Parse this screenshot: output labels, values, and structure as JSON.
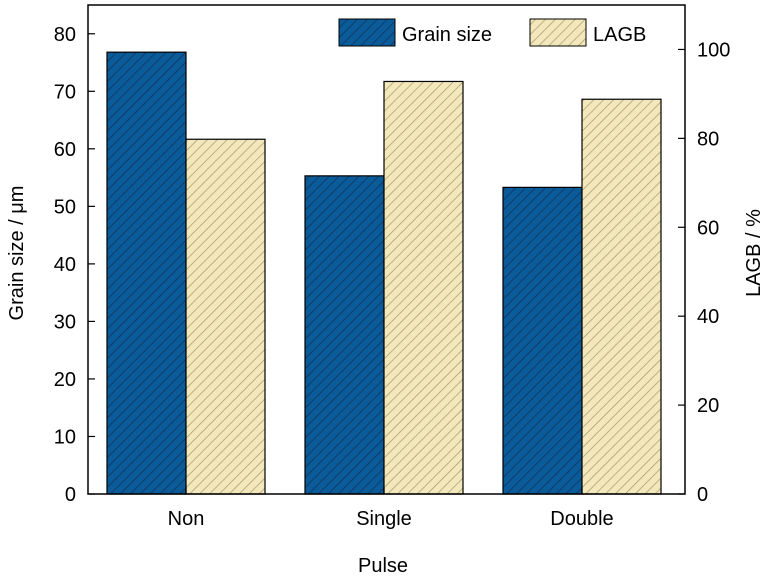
{
  "chart_data": {
    "type": "bar",
    "xlabel": "Pulse",
    "categories": [
      "Non",
      "Single",
      "Double"
    ],
    "series": [
      {
        "name": "Grain size",
        "axis": "left",
        "color": "#0a5b9a",
        "values": [
          76.8,
          55.3,
          53.3
        ]
      },
      {
        "name": "LAGB",
        "axis": "right",
        "color": "#f2e8bb",
        "values": [
          79.8,
          92.8,
          88.8
        ]
      }
    ],
    "y_left": {
      "label": "Grain size / μm",
      "range": [
        0,
        85
      ],
      "ticks": [
        0,
        10,
        20,
        30,
        40,
        50,
        60,
        70,
        80
      ]
    },
    "y_right": {
      "label": "LAGB / %",
      "range": [
        0,
        110
      ],
      "ticks": [
        0,
        20,
        40,
        60,
        80,
        100
      ]
    },
    "legend": {
      "position": "top-right"
    },
    "grid": false
  }
}
